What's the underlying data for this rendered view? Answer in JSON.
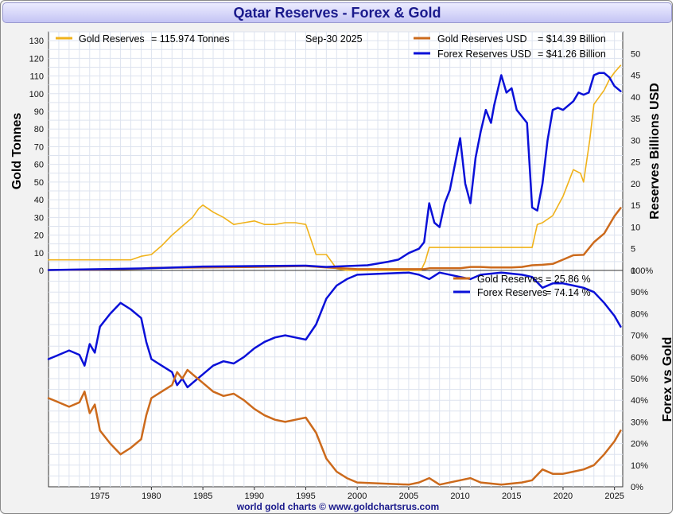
{
  "title": "Qatar Reserves - Forex & Gold",
  "footer": "world gold charts © www.goldchartsrus.com",
  "colors": {
    "gold_tonnes": "#f0b21a",
    "gold_usd": "#cc6a1c",
    "forex": "#0a10d8",
    "grid": "#dde3ef"
  },
  "chart_data": [
    {
      "type": "line",
      "title": "Qatar Reserves - Forex & Gold",
      "date_label": "Sep-30  2025",
      "ylabel_left": "Gold Tonnes",
      "ylabel_right": "Reserves Billions USD",
      "ylim_left": [
        0,
        135
      ],
      "ylim_right": [
        0,
        55
      ],
      "yticks_left": [
        "0",
        "10",
        "20",
        "30",
        "40",
        "50",
        "60",
        "70",
        "80",
        "90",
        "100",
        "110",
        "120",
        "130"
      ],
      "yticks_right": [
        "0",
        "5",
        "10",
        "15",
        "20",
        "25",
        "30",
        "35",
        "40",
        "45",
        "50"
      ],
      "xlim": [
        1970,
        2025.8
      ],
      "legend": [
        {
          "label": "Gold Reserves",
          "value": "=  115.974 Tonnes"
        },
        {
          "label": "Gold Reserves USD",
          "value": "= $14.39 Billion"
        },
        {
          "label": "Forex Reserves USD",
          "value": "= $41.26 Billion"
        }
      ],
      "series": [
        {
          "name": "Gold Reserves (Tonnes)",
          "axis": "left",
          "x": [
            1970,
            1977,
            1978,
            1979,
            1980,
            1981,
            1982,
            1983,
            1984,
            1984.6,
            1985,
            1986,
            1987,
            1988,
            1989,
            1990,
            1991,
            1992,
            1993,
            1994,
            1995,
            1996,
            1997,
            1997.5,
            1998,
            1999,
            2000,
            2005,
            2006.2,
            2006.6,
            2007,
            2008,
            2010,
            2015,
            2016,
            2017,
            2017.5,
            2018,
            2019,
            2020,
            2021,
            2021.7,
            2022,
            2022.3,
            2022.6,
            2023,
            2024,
            2024.5,
            2025,
            2025.6
          ],
          "y": [
            6,
            6,
            6,
            8,
            9,
            14,
            20,
            25,
            30,
            35,
            37,
            33,
            30,
            26,
            27,
            28,
            26,
            26,
            27,
            27,
            26,
            9,
            9,
            5,
            1,
            0,
            0,
            0,
            0,
            5,
            13,
            13,
            13,
            13,
            13,
            13,
            26,
            27,
            31,
            42,
            57,
            55,
            50,
            62,
            74,
            94,
            102,
            108,
            112,
            116
          ]
        },
        {
          "name": "Gold Reserves USD (Billions)",
          "axis": "right",
          "x": [
            1970,
            1975,
            1979,
            1980,
            1985,
            1990,
            1995,
            1997,
            2000,
            2005,
            2006.5,
            2007,
            2008,
            2010,
            2011,
            2012,
            2013,
            2014,
            2015,
            2016,
            2017,
            2018,
            2019,
            2020,
            2021,
            2022,
            2023,
            2024,
            2025,
            2025.6
          ],
          "y": [
            0.1,
            0.2,
            0.4,
            0.6,
            0.7,
            0.8,
            1.0,
            0.7,
            0.3,
            0.3,
            0.3,
            0.5,
            0.5,
            0.5,
            0.8,
            0.8,
            0.7,
            0.7,
            0.7,
            0.8,
            1.2,
            1.3,
            1.5,
            2.5,
            3.5,
            3.6,
            6.5,
            8.5,
            12.5,
            14.4
          ]
        },
        {
          "name": "Forex Reserves USD (Billions)",
          "axis": "right",
          "x": [
            1970,
            1975,
            1980,
            1985,
            1990,
            1995,
            1997,
            1999,
            2000,
            2001,
            2003,
            2004,
            2005,
            2006,
            2006.5,
            2007,
            2007.5,
            2008,
            2008.5,
            2009,
            2010,
            2010.5,
            2011,
            2011.5,
            2012,
            2012.5,
            2013,
            2013.3,
            2013.7,
            2014,
            2014.5,
            2015,
            2015.5,
            2016,
            2016.5,
            2017,
            2017.5,
            2018,
            2018.5,
            2019,
            2019.5,
            2020,
            2021,
            2021.5,
            2022,
            2022.5,
            2023,
            2023.5,
            2024,
            2024.5,
            2025,
            2025.6
          ],
          "y": [
            0.1,
            0.3,
            0.5,
            0.9,
            1.0,
            1.1,
            0.8,
            1.0,
            1.1,
            1.2,
            2.0,
            2.5,
            4.0,
            5.0,
            6.5,
            15.5,
            11.0,
            10.0,
            15.5,
            18.5,
            30.5,
            20.0,
            15.5,
            26.0,
            32.0,
            37.0,
            34.0,
            38.0,
            42.0,
            45.0,
            41.0,
            42.0,
            37.0,
            35.5,
            34.0,
            14.5,
            13.8,
            20.0,
            30.0,
            37.0,
            37.5,
            37.0,
            39.0,
            41.0,
            40.5,
            41.0,
            45.0,
            45.5,
            45.5,
            44.5,
            42.5,
            41.3
          ]
        }
      ]
    },
    {
      "type": "line",
      "ylabel_right": "Forex vs Gold",
      "ylim": [
        0,
        100
      ],
      "yticks_right": [
        "0%",
        "10%",
        "20%",
        "30%",
        "40%",
        "50%",
        "60%",
        "70%",
        "80%",
        "90%",
        "100%"
      ],
      "xlim": [
        1970,
        2025.8
      ],
      "xticks": [
        "1975",
        "1980",
        "1985",
        "1990",
        "1995",
        "2000",
        "2005",
        "2010",
        "2015",
        "2020",
        "2025"
      ],
      "legend": [
        {
          "label": "Gold Reserves",
          "value": "=  25.86 %"
        },
        {
          "label": "Forex Reserves",
          "value": "=  74.14 %"
        }
      ],
      "series": [
        {
          "name": "Forex Reserves (%)",
          "x": [
            1970,
            1971,
            1972,
            1973,
            1973.5,
            1974,
            1974.5,
            1975,
            1976,
            1977,
            1978,
            1979,
            1979.5,
            1980,
            1981,
            1982,
            1982.5,
            1983,
            1983.5,
            1984,
            1985,
            1986,
            1987,
            1988,
            1989,
            1990,
            1991,
            1992,
            1993,
            1994,
            1995,
            1996,
            1997,
            1998,
            1999,
            2000,
            2005,
            2006,
            2007,
            2008,
            2010,
            2011,
            2012,
            2014,
            2016,
            2017,
            2018,
            2019,
            2020,
            2021,
            2022,
            2023,
            2024,
            2025,
            2025.6
          ],
          "y": [
            59,
            61,
            63,
            61,
            56,
            66,
            62,
            74,
            80,
            85,
            82,
            78,
            67,
            59,
            56,
            53,
            47,
            50,
            46,
            48,
            52,
            56,
            58,
            57,
            60,
            64,
            67,
            69,
            70,
            69,
            68,
            75,
            87,
            93,
            96,
            98,
            99,
            98,
            96,
            99,
            97,
            96,
            98,
            99,
            98,
            97,
            92,
            94,
            94,
            93,
            92,
            90,
            85,
            79,
            74
          ]
        },
        {
          "name": "Gold Reserves (%)",
          "x": [
            1970,
            1971,
            1972,
            1973,
            1973.5,
            1974,
            1974.5,
            1975,
            1976,
            1977,
            1978,
            1979,
            1979.5,
            1980,
            1981,
            1982,
            1982.5,
            1983,
            1983.5,
            1984,
            1985,
            1986,
            1987,
            1988,
            1989,
            1990,
            1991,
            1992,
            1993,
            1994,
            1995,
            1996,
            1997,
            1998,
            1999,
            2000,
            2005,
            2006,
            2007,
            2008,
            2010,
            2011,
            2012,
            2014,
            2016,
            2017,
            2018,
            2019,
            2020,
            2021,
            2022,
            2023,
            2024,
            2025,
            2025.6
          ],
          "y": [
            41,
            39,
            37,
            39,
            44,
            34,
            38,
            26,
            20,
            15,
            18,
            22,
            33,
            41,
            44,
            47,
            53,
            50,
            54,
            52,
            48,
            44,
            42,
            43,
            40,
            36,
            33,
            31,
            30,
            31,
            32,
            25,
            13,
            7,
            4,
            2,
            1,
            2,
            4,
            1,
            3,
            4,
            2,
            1,
            2,
            3,
            8,
            6,
            6,
            7,
            8,
            10,
            15,
            21,
            26
          ]
        }
      ]
    }
  ]
}
